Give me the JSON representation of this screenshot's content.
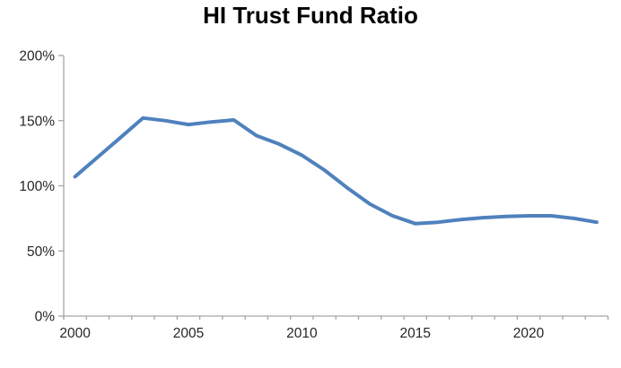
{
  "chart_data": {
    "type": "line",
    "title": "HI Trust Fund Ratio",
    "xlabel": "",
    "ylabel": "",
    "x": [
      2000,
      2001,
      2002,
      2003,
      2004,
      2005,
      2006,
      2007,
      2008,
      2009,
      2010,
      2011,
      2012,
      2013,
      2014,
      2015,
      2016,
      2017,
      2018,
      2019,
      2020,
      2021,
      2022,
      2023
    ],
    "values": [
      107,
      122,
      137,
      152,
      150,
      147,
      149,
      150.5,
      138.5,
      132,
      123.5,
      112,
      98.5,
      86,
      77,
      71,
      72,
      74,
      75.5,
      76.5,
      77,
      77,
      75,
      72
    ],
    "ylim": [
      0,
      200
    ],
    "y_ticks": [
      {
        "value": 0,
        "label": "0%"
      },
      {
        "value": 50,
        "label": "50%"
      },
      {
        "value": 100,
        "label": "100%"
      },
      {
        "value": 150,
        "label": "150%"
      },
      {
        "value": 200,
        "label": "200%"
      }
    ],
    "x_tick_labels": [
      {
        "year": 2000,
        "label": "2000"
      },
      {
        "year": 2005,
        "label": "2005"
      },
      {
        "year": 2010,
        "label": "2010"
      },
      {
        "year": 2015,
        "label": "2015"
      },
      {
        "year": 2020,
        "label": "2020"
      }
    ],
    "grid": false,
    "legend": "none",
    "line_color": "#4F81BD",
    "axis_color": "#A6A6A6",
    "label_color": "#262626"
  }
}
